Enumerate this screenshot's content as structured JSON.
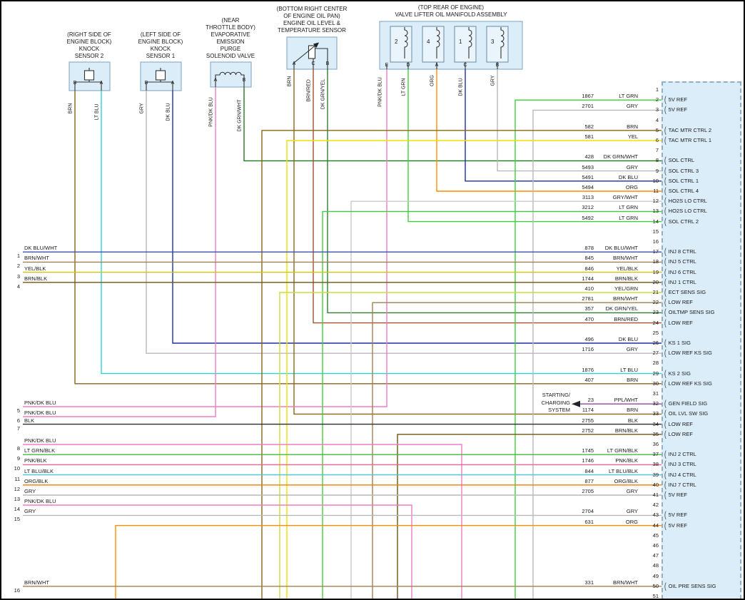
{
  "colors": {
    "page_bg": "#ffffff",
    "frame": "#000000",
    "component_box_fill": "#daedf9",
    "component_box_border": "#8fb0c8",
    "connector_fill": "#daedf9",
    "connector_border": "#8fb0c8",
    "text": "#1a1a1a",
    "wire_colors": {
      "BRN": "#8a6519",
      "LT BLU": "#2fd5d5",
      "GRY": "#b9b9b9",
      "DK BLU": "#1d2f9e",
      "PNK/DK BLU": "#ee7ec2",
      "DK GRN/WHT": "#1e7a1e",
      "BRN/RED": "#a0522d",
      "DK GRN/YEL": "#2e7d32",
      "LT GRN": "#3ecf3e",
      "ORG": "#ff8c00",
      "YEL": "#f0e000",
      "DK BLU/WHT": "#3a50b0",
      "BRN/WHT": "#a08050",
      "YEL/BLK": "#cfc400",
      "BRN/BLK": "#6e5410",
      "GRY/WHT": "#c9c9c9",
      "YEL/GRN": "#cddc39",
      "BLK": "#2a2a2a",
      "LT GRN/BLK": "#45b845",
      "PNK/BLK": "#f06292",
      "LT BLU/BLK": "#45c8de",
      "ORG/BLK": "#ef7d00",
      "PPL/WHT": "#8e44ad"
    }
  },
  "components": {
    "knock_sensor_2": {
      "caption": [
        "(RIGHT SIDE OF",
        "ENGINE BLOCK)",
        "KNOCK",
        "SENSOR 2"
      ],
      "terminals": [
        {
          "id": "B",
          "wire_color": "BRN"
        },
        {
          "id": "A",
          "wire_color": "LT BLU"
        }
      ]
    },
    "knock_sensor_1": {
      "caption": [
        "(LEFT SIDE OF",
        "ENGINE BLOCK)",
        "KNOCK",
        "SENSOR 1"
      ],
      "terminals": [
        {
          "id": "B",
          "wire_color": "GRY"
        },
        {
          "id": "A",
          "wire_color": "DK BLU"
        }
      ]
    },
    "purge_solenoid": {
      "caption": [
        "(NEAR",
        "THROTTLE BODY)",
        "EVAPORATIVE",
        "EMISSION",
        "PURGE",
        "SOLENOID VALVE"
      ],
      "terminals": [
        {
          "id": "A",
          "wire_color": "PNK/DK BLU"
        },
        {
          "id": "B",
          "wire_color": "DK GRN/WHT"
        }
      ]
    },
    "oil_level_temp_sensor": {
      "caption": [
        "(BOTTOM RIGHT CENTER",
        "OF ENGINE OIL PAN)",
        "ENGINE OIL LEVEL &",
        "TEMPERATURE SENSOR"
      ],
      "terminals": [
        {
          "id": "A",
          "wire_color": "BRN"
        },
        {
          "id": "C",
          "wire_color": "BRN/RED"
        },
        {
          "id": "B",
          "wire_color": "DK GRN/YEL"
        }
      ]
    },
    "valve_lifter_oil_manifold": {
      "caption": [
        "(TOP REAR OF ENGINE)",
        "VALVE LIFTER OIL MANIFOLD ASSEMBLY"
      ],
      "solenoid_numbers": [
        "2",
        "4",
        "1",
        "3"
      ],
      "terminals": [
        {
          "id": "E",
          "wire_color": "PNK/DK BLU"
        },
        {
          "id": "D",
          "wire_color": "LT GRN"
        },
        {
          "id": "A",
          "wire_color": "ORG"
        },
        {
          "id": "C",
          "wire_color": "DK BLU"
        },
        {
          "id": "B",
          "wire_color": "GRY"
        }
      ]
    }
  },
  "connector": {
    "pins": [
      {
        "n": "1"
      },
      {
        "n": "2",
        "circuit": "1867",
        "color": "LT GRN",
        "label": "5V REF"
      },
      {
        "n": "3",
        "circuit": "2701",
        "color": "GRY",
        "label": "5V REF"
      },
      {
        "n": "4"
      },
      {
        "n": "5",
        "circuit": "582",
        "color": "BRN",
        "label": "TAC MTR CTRL 2"
      },
      {
        "n": "6",
        "circuit": "581",
        "color": "YEL",
        "label": "TAC MTR CTRL 1"
      },
      {
        "n": "7"
      },
      {
        "n": "8",
        "circuit": "428",
        "color": "DK GRN/WHT",
        "label": "SOL CTRL"
      },
      {
        "n": "9",
        "circuit": "5493",
        "color": "GRY",
        "label": "SOL CTRL 3"
      },
      {
        "n": "10",
        "circuit": "5491",
        "color": "DK BLU",
        "label": "SOL CTRL 1"
      },
      {
        "n": "11",
        "circuit": "5494",
        "color": "ORG",
        "label": "SOL CTRL 4"
      },
      {
        "n": "12",
        "circuit": "3113",
        "color": "GRY/WHT",
        "label": "HO2S LO CTRL"
      },
      {
        "n": "13",
        "circuit": "3212",
        "color": "LT GRN",
        "label": "HO2S LO CTRL"
      },
      {
        "n": "14",
        "circuit": "5492",
        "color": "LT GRN",
        "label": "SOL CTRL 2"
      },
      {
        "n": "15"
      },
      {
        "n": "16"
      },
      {
        "n": "17",
        "circuit": "878",
        "color": "DK BLU/WHT",
        "label": "INJ 8 CTRL"
      },
      {
        "n": "18",
        "circuit": "845",
        "color": "BRN/WHT",
        "label": "INJ 5 CTRL"
      },
      {
        "n": "19",
        "circuit": "846",
        "color": "YEL/BLK",
        "label": "INJ 6 CTRL"
      },
      {
        "n": "20",
        "circuit": "1744",
        "color": "BRN/BLK",
        "label": "INJ 1 CTRL"
      },
      {
        "n": "21",
        "circuit": "410",
        "color": "YEL/GRN",
        "label": "ECT SENS SIG"
      },
      {
        "n": "22",
        "circuit": "2781",
        "color": "BRN/WHT",
        "label": "LOW REF"
      },
      {
        "n": "23",
        "circuit": "357",
        "color": "DK GRN/YEL",
        "label": "OILTMP SENS SIG"
      },
      {
        "n": "24",
        "circuit": "470",
        "color": "BRN/RED",
        "label": "LOW REF"
      },
      {
        "n": "25"
      },
      {
        "n": "26",
        "circuit": "496",
        "color": "DK BLU",
        "label": "KS 1 SIG"
      },
      {
        "n": "27",
        "circuit": "1716",
        "color": "GRY",
        "label": "LOW REF KS SIG"
      },
      {
        "n": "28"
      },
      {
        "n": "29",
        "circuit": "1876",
        "color": "LT BLU",
        "label": "KS 2 SIG"
      },
      {
        "n": "30",
        "circuit": "407",
        "color": "BRN",
        "label": "LOW REF KS SIG"
      },
      {
        "n": "31"
      },
      {
        "n": "32",
        "circuit": "23",
        "color": "PPL/WHT",
        "label": "GEN FIELD SIG"
      },
      {
        "n": "33",
        "circuit": "1174",
        "color": "BRN",
        "label": "OIL LVL SW SIG"
      },
      {
        "n": "34",
        "circuit": "2755",
        "color": "BLK",
        "label": "LOW REF"
      },
      {
        "n": "35",
        "circuit": "2752",
        "color": "BRN/BLK",
        "label": "LOW REF"
      },
      {
        "n": "36"
      },
      {
        "n": "37",
        "circuit": "1745",
        "color": "LT GRN/BLK",
        "label": "INJ 2 CTRL"
      },
      {
        "n": "38",
        "circuit": "1746",
        "color": "PNK/BLK",
        "label": "INJ 3 CTRL"
      },
      {
        "n": "39",
        "circuit": "844",
        "color": "LT BLU/BLK",
        "label": "INJ 4 CTRL"
      },
      {
        "n": "40",
        "circuit": "877",
        "color": "ORG/BLK",
        "label": "INJ 7 CTRL"
      },
      {
        "n": "41",
        "circuit": "2705",
        "color": "GRY",
        "label": "5V REF"
      },
      {
        "n": "42"
      },
      {
        "n": "43",
        "circuit": "2704",
        "color": "GRY",
        "label": "5V REF"
      },
      {
        "n": "44",
        "circuit": "631",
        "color": "ORG",
        "label": "5V REF"
      },
      {
        "n": "45"
      },
      {
        "n": "46"
      },
      {
        "n": "47"
      },
      {
        "n": "48"
      },
      {
        "n": "49"
      },
      {
        "n": "50",
        "circuit": "331",
        "color": "BRN/WHT",
        "label": "OIL PRE SENS SIG"
      },
      {
        "n": "51"
      }
    ]
  },
  "left_wires": [
    {
      "n": "1",
      "color": "DK BLU/WHT"
    },
    {
      "n": "2",
      "color": "BRN/WHT"
    },
    {
      "n": "3",
      "color": "YEL/BLK"
    },
    {
      "n": "4",
      "color": "BRN/BLK"
    },
    {
      "n": "5",
      "color": "PNK/DK BLU"
    },
    {
      "n": "6",
      "color": "PNK/DK BLU"
    },
    {
      "n": "7",
      "color": "BLK"
    },
    {
      "n": "8",
      "color": "PNK/DK BLU"
    },
    {
      "n": "9",
      "color": "LT GRN/BLK"
    },
    {
      "n": "10",
      "color": "PNK/BLK"
    },
    {
      "n": "11",
      "color": "LT BLU/BLK"
    },
    {
      "n": "12",
      "color": "ORG/BLK"
    },
    {
      "n": "13",
      "color": "GRY"
    },
    {
      "n": "14",
      "color": "PNK/DK BLU"
    },
    {
      "n": "15",
      "color": "GRY"
    },
    {
      "n": "16",
      "color": "BRN/WHT"
    }
  ],
  "offpage": {
    "lines": [
      "STARTING/",
      "CHARGING",
      "SYSTEM"
    ]
  }
}
